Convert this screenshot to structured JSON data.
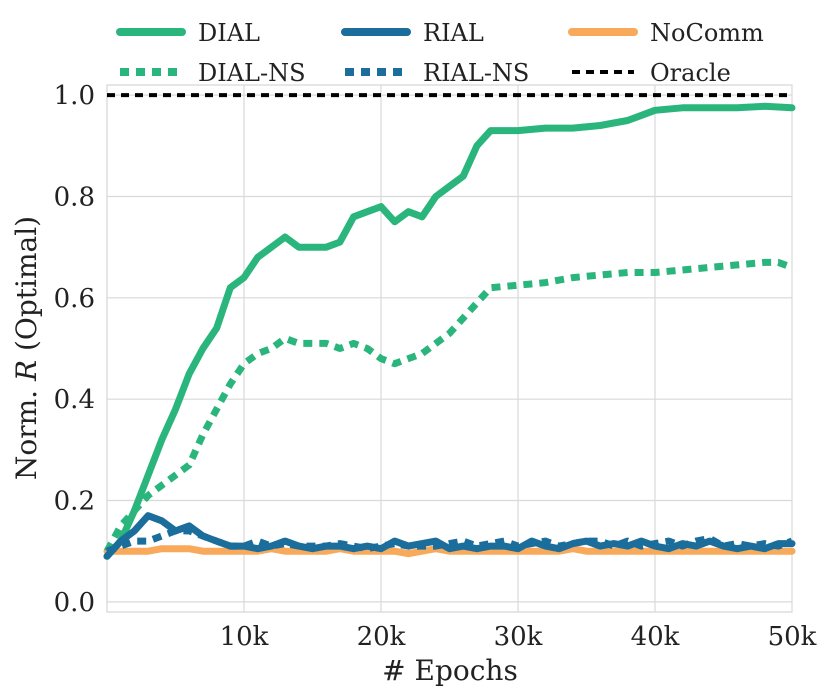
{
  "chart_data": {
    "type": "line",
    "xlabel": "# Epochs",
    "ylabel_prefix": "Norm. ",
    "ylabel_italic": "R",
    "ylabel_suffix": " (Optimal)",
    "xlim": [
      0,
      50000
    ],
    "ylim": [
      -0.02,
      1.02
    ],
    "x_ticks": [
      10000,
      20000,
      30000,
      40000,
      50000
    ],
    "x_tick_labels": [
      "10k",
      "20k",
      "30k",
      "40k",
      "50k"
    ],
    "y_ticks": [
      0.0,
      0.2,
      0.4,
      0.6,
      0.8,
      1.0
    ],
    "y_tick_labels": [
      "0.0",
      "0.2",
      "0.4",
      "0.6",
      "0.8",
      "1.0"
    ],
    "grid": true,
    "legend_position": "top",
    "series": [
      {
        "name": "DIAL",
        "color": "#2ab57d",
        "style": "solid",
        "points": [
          [
            0,
            0.09
          ],
          [
            1000,
            0.12
          ],
          [
            2000,
            0.18
          ],
          [
            3000,
            0.25
          ],
          [
            4000,
            0.32
          ],
          [
            5000,
            0.38
          ],
          [
            6000,
            0.45
          ],
          [
            7000,
            0.5
          ],
          [
            8000,
            0.54
          ],
          [
            9000,
            0.62
          ],
          [
            10000,
            0.64
          ],
          [
            11000,
            0.68
          ],
          [
            12000,
            0.7
          ],
          [
            13000,
            0.72
          ],
          [
            14000,
            0.7
          ],
          [
            15000,
            0.7
          ],
          [
            16000,
            0.7
          ],
          [
            17000,
            0.71
          ],
          [
            18000,
            0.76
          ],
          [
            19000,
            0.77
          ],
          [
            20000,
            0.78
          ],
          [
            21000,
            0.75
          ],
          [
            22000,
            0.77
          ],
          [
            23000,
            0.76
          ],
          [
            24000,
            0.8
          ],
          [
            25000,
            0.82
          ],
          [
            26000,
            0.84
          ],
          [
            27000,
            0.9
          ],
          [
            28000,
            0.93
          ],
          [
            30000,
            0.93
          ],
          [
            32000,
            0.935
          ],
          [
            34000,
            0.935
          ],
          [
            36000,
            0.94
          ],
          [
            38000,
            0.95
          ],
          [
            40000,
            0.97
          ],
          [
            42000,
            0.975
          ],
          [
            44000,
            0.975
          ],
          [
            46000,
            0.975
          ],
          [
            48000,
            0.978
          ],
          [
            50000,
            0.975
          ]
        ]
      },
      {
        "name": "DIAL-NS",
        "color": "#2ab57d",
        "style": "dotted",
        "points": [
          [
            0,
            0.1
          ],
          [
            1000,
            0.15
          ],
          [
            2000,
            0.18
          ],
          [
            3000,
            0.21
          ],
          [
            4000,
            0.23
          ],
          [
            5000,
            0.25
          ],
          [
            6000,
            0.27
          ],
          [
            7000,
            0.33
          ],
          [
            8000,
            0.38
          ],
          [
            9000,
            0.43
          ],
          [
            10000,
            0.47
          ],
          [
            11000,
            0.49
          ],
          [
            12000,
            0.5
          ],
          [
            13000,
            0.52
          ],
          [
            14000,
            0.51
          ],
          [
            15000,
            0.51
          ],
          [
            16000,
            0.51
          ],
          [
            17000,
            0.5
          ],
          [
            18000,
            0.51
          ],
          [
            19000,
            0.5
          ],
          [
            20000,
            0.48
          ],
          [
            21000,
            0.47
          ],
          [
            22000,
            0.48
          ],
          [
            23000,
            0.49
          ],
          [
            24000,
            0.51
          ],
          [
            25000,
            0.53
          ],
          [
            26000,
            0.56
          ],
          [
            27000,
            0.59
          ],
          [
            28000,
            0.62
          ],
          [
            30000,
            0.625
          ],
          [
            32000,
            0.63
          ],
          [
            34000,
            0.64
          ],
          [
            36000,
            0.645
          ],
          [
            38000,
            0.65
          ],
          [
            40000,
            0.65
          ],
          [
            42000,
            0.655
          ],
          [
            44000,
            0.66
          ],
          [
            46000,
            0.665
          ],
          [
            48000,
            0.67
          ],
          [
            49000,
            0.67
          ],
          [
            50000,
            0.66
          ]
        ]
      },
      {
        "name": "RIAL",
        "color": "#1b6e9c",
        "style": "solid",
        "points": [
          [
            0,
            0.09
          ],
          [
            1000,
            0.12
          ],
          [
            2000,
            0.14
          ],
          [
            3000,
            0.17
          ],
          [
            4000,
            0.16
          ],
          [
            5000,
            0.14
          ],
          [
            6000,
            0.15
          ],
          [
            7000,
            0.13
          ],
          [
            8000,
            0.12
          ],
          [
            9000,
            0.11
          ],
          [
            10000,
            0.11
          ],
          [
            11000,
            0.105
          ],
          [
            12000,
            0.11
          ],
          [
            13000,
            0.12
          ],
          [
            14000,
            0.11
          ],
          [
            15000,
            0.105
          ],
          [
            16000,
            0.11
          ],
          [
            17000,
            0.11
          ],
          [
            18000,
            0.105
          ],
          [
            19000,
            0.11
          ],
          [
            20000,
            0.105
          ],
          [
            21000,
            0.12
          ],
          [
            22000,
            0.11
          ],
          [
            23000,
            0.115
          ],
          [
            24000,
            0.12
          ],
          [
            25000,
            0.105
          ],
          [
            26000,
            0.11
          ],
          [
            27000,
            0.105
          ],
          [
            28000,
            0.11
          ],
          [
            29000,
            0.11
          ],
          [
            30000,
            0.105
          ],
          [
            31000,
            0.12
          ],
          [
            32000,
            0.11
          ],
          [
            33000,
            0.105
          ],
          [
            34000,
            0.115
          ],
          [
            35000,
            0.12
          ],
          [
            36000,
            0.11
          ],
          [
            37000,
            0.115
          ],
          [
            38000,
            0.11
          ],
          [
            39000,
            0.12
          ],
          [
            40000,
            0.11
          ],
          [
            41000,
            0.105
          ],
          [
            42000,
            0.115
          ],
          [
            43000,
            0.11
          ],
          [
            44000,
            0.12
          ],
          [
            45000,
            0.11
          ],
          [
            46000,
            0.105
          ],
          [
            47000,
            0.11
          ],
          [
            48000,
            0.105
          ],
          [
            49000,
            0.115
          ],
          [
            50000,
            0.115
          ]
        ]
      },
      {
        "name": "RIAL-NS",
        "color": "#1b6e9c",
        "style": "dotted",
        "points": [
          [
            0,
            0.1
          ],
          [
            1000,
            0.11
          ],
          [
            2000,
            0.12
          ],
          [
            3000,
            0.12
          ],
          [
            4000,
            0.13
          ],
          [
            5000,
            0.14
          ],
          [
            6000,
            0.14
          ],
          [
            7000,
            0.13
          ],
          [
            8000,
            0.12
          ],
          [
            9000,
            0.11
          ],
          [
            10000,
            0.11
          ],
          [
            11000,
            0.12
          ],
          [
            12000,
            0.11
          ],
          [
            13000,
            0.115
          ],
          [
            14000,
            0.11
          ],
          [
            15000,
            0.11
          ],
          [
            16000,
            0.11
          ],
          [
            17000,
            0.115
          ],
          [
            18000,
            0.11
          ],
          [
            19000,
            0.105
          ],
          [
            20000,
            0.11
          ],
          [
            21000,
            0.115
          ],
          [
            22000,
            0.11
          ],
          [
            23000,
            0.11
          ],
          [
            24000,
            0.11
          ],
          [
            25000,
            0.115
          ],
          [
            26000,
            0.12
          ],
          [
            27000,
            0.11
          ],
          [
            28000,
            0.115
          ],
          [
            29000,
            0.12
          ],
          [
            30000,
            0.11
          ],
          [
            31000,
            0.115
          ],
          [
            32000,
            0.12
          ],
          [
            33000,
            0.11
          ],
          [
            34000,
            0.115
          ],
          [
            35000,
            0.12
          ],
          [
            36000,
            0.12
          ],
          [
            37000,
            0.11
          ],
          [
            38000,
            0.12
          ],
          [
            39000,
            0.11
          ],
          [
            40000,
            0.115
          ],
          [
            41000,
            0.12
          ],
          [
            42000,
            0.11
          ],
          [
            43000,
            0.12
          ],
          [
            44000,
            0.125
          ],
          [
            45000,
            0.11
          ],
          [
            46000,
            0.115
          ],
          [
            47000,
            0.11
          ],
          [
            48000,
            0.115
          ],
          [
            49000,
            0.11
          ],
          [
            50000,
            0.12
          ]
        ]
      },
      {
        "name": "NoComm",
        "color": "#f9a95a",
        "style": "solid",
        "points": [
          [
            0,
            0.1
          ],
          [
            1000,
            0.1
          ],
          [
            2000,
            0.1
          ],
          [
            3000,
            0.1
          ],
          [
            4000,
            0.105
          ],
          [
            5000,
            0.105
          ],
          [
            6000,
            0.105
          ],
          [
            7000,
            0.1
          ],
          [
            8000,
            0.1
          ],
          [
            9000,
            0.1
          ],
          [
            10000,
            0.1
          ],
          [
            11000,
            0.1
          ],
          [
            12000,
            0.105
          ],
          [
            13000,
            0.1
          ],
          [
            14000,
            0.1
          ],
          [
            15000,
            0.1
          ],
          [
            16000,
            0.1
          ],
          [
            17000,
            0.105
          ],
          [
            18000,
            0.1
          ],
          [
            19000,
            0.1
          ],
          [
            20000,
            0.1
          ],
          [
            21000,
            0.1
          ],
          [
            22000,
            0.095
          ],
          [
            23000,
            0.1
          ],
          [
            24000,
            0.105
          ],
          [
            25000,
            0.1
          ],
          [
            26000,
            0.1
          ],
          [
            27000,
            0.1
          ],
          [
            28000,
            0.1
          ],
          [
            29000,
            0.1
          ],
          [
            30000,
            0.1
          ],
          [
            31000,
            0.1
          ],
          [
            32000,
            0.1
          ],
          [
            33000,
            0.1
          ],
          [
            34000,
            0.105
          ],
          [
            35000,
            0.1
          ],
          [
            36000,
            0.1
          ],
          [
            37000,
            0.1
          ],
          [
            38000,
            0.1
          ],
          [
            39000,
            0.1
          ],
          [
            40000,
            0.1
          ],
          [
            41000,
            0.1
          ],
          [
            42000,
            0.1
          ],
          [
            43000,
            0.1
          ],
          [
            44000,
            0.1
          ],
          [
            45000,
            0.1
          ],
          [
            46000,
            0.1
          ],
          [
            47000,
            0.1
          ],
          [
            48000,
            0.1
          ],
          [
            49000,
            0.1
          ],
          [
            50000,
            0.1
          ]
        ]
      },
      {
        "name": "Oracle",
        "color": "#000000",
        "style": "dashed",
        "points": [
          [
            0,
            1.0
          ],
          [
            50000,
            1.0
          ]
        ]
      }
    ],
    "legend_order": [
      "DIAL",
      "RIAL",
      "NoComm",
      "DIAL-NS",
      "RIAL-NS",
      "Oracle"
    ]
  }
}
